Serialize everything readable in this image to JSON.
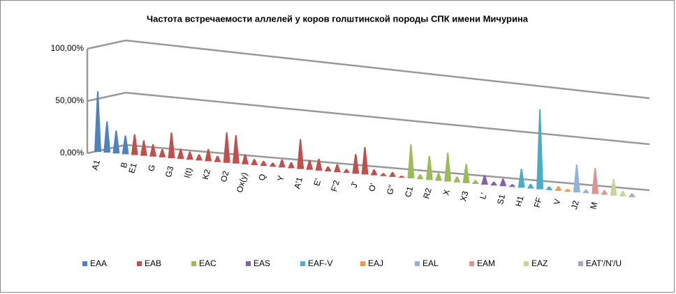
{
  "chart_data": {
    "type": "bar3d",
    "title": "Частота встречаемости аллелей  у коров  голштинской породы  СПК имени Мичурина",
    "ylim": [
      0,
      100
    ],
    "yticks": [
      {
        "value": 0,
        "label": "0,00%"
      },
      {
        "value": 50,
        "label": "50,00%"
      },
      {
        "value": 100,
        "label": "100,00%"
      }
    ],
    "grid": true,
    "legend": "bottom",
    "series": [
      {
        "name": "EAA",
        "color": "#4f81bd",
        "categories": [
          "A1",
          null,
          null,
          "B"
        ],
        "values": [
          58,
          30,
          22,
          18
        ]
      },
      {
        "name": "EAB",
        "color": "#c0504d",
        "categories": [
          "E1",
          null,
          "G",
          null,
          "G3",
          null,
          "I(t)",
          null,
          "K2",
          null,
          "O2",
          null,
          "Ox(y)",
          null,
          "Q",
          null,
          "Y",
          null,
          "A'1",
          null,
          "E'",
          null,
          "F'2",
          null,
          "J'",
          null,
          "O'",
          null,
          "G''",
          null
        ],
        "values": [
          20,
          15,
          12,
          8,
          25,
          10,
          8,
          6,
          12,
          6,
          30,
          28,
          10,
          6,
          5,
          4,
          8,
          6,
          30,
          10,
          12,
          5,
          8,
          4,
          20,
          28,
          6,
          3,
          5,
          2
        ]
      },
      {
        "name": "EAC",
        "color": "#9bbb59",
        "categories": [
          "C1",
          null,
          "R2",
          null,
          "X",
          null,
          "X3",
          null
        ],
        "values": [
          35,
          5,
          25,
          8,
          30,
          6,
          20,
          4
        ]
      },
      {
        "name": "EAS",
        "color": "#8064a2",
        "categories": [
          "L'",
          null,
          "S1",
          null
        ],
        "values": [
          10,
          4,
          8,
          3
        ]
      },
      {
        "name": "EAF-V",
        "color": "#4bacc6",
        "categories": [
          "H1",
          null,
          "FF",
          null
        ],
        "values": [
          20,
          5,
          85,
          4
        ]
      },
      {
        "name": "EAJ",
        "color": "#f79646",
        "categories": [
          "V",
          null
        ],
        "values": [
          5,
          3
        ]
      },
      {
        "name": "EAL",
        "color": "#95b3d7",
        "categories": [
          "J2",
          null
        ],
        "values": [
          30,
          4
        ]
      },
      {
        "name": "EAM",
        "color": "#d99694",
        "categories": [
          "M",
          null
        ],
        "values": [
          28,
          5
        ]
      },
      {
        "name": "EAZ",
        "color": "#c3d69b",
        "categories": [
          null,
          null
        ],
        "values": [
          18,
          6
        ]
      },
      {
        "name": "EAT'/N'/U",
        "color": "#b3a2c7",
        "categories": [
          null
        ],
        "values": [
          4
        ]
      }
    ]
  }
}
